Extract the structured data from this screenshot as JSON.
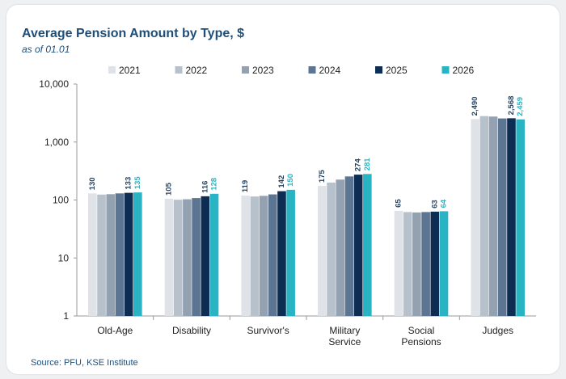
{
  "chart_data": {
    "type": "bar",
    "title": "Average Pension Amount by Type, $",
    "subtitle": "as of 01.01",
    "source": "Source: PFU,  KSE Institute",
    "yscale": "log",
    "ylim": [
      1,
      10000
    ],
    "yticks": [
      {
        "value": 1,
        "label": "1"
      },
      {
        "value": 10,
        "label": "10"
      },
      {
        "value": 100,
        "label": "100"
      },
      {
        "value": 1000,
        "label": "1,000"
      },
      {
        "value": 10000,
        "label": "10,000"
      }
    ],
    "legend_position": "top",
    "categories": [
      {
        "lines": [
          "Old-Age"
        ]
      },
      {
        "lines": [
          "Disability"
        ]
      },
      {
        "lines": [
          "Survivor's"
        ]
      },
      {
        "lines": [
          "Military",
          "Service"
        ]
      },
      {
        "lines": [
          "Social",
          "Pensions"
        ]
      },
      {
        "lines": [
          "Judges"
        ]
      }
    ],
    "series": [
      {
        "name": "2021",
        "color": "#dfe3e8",
        "labelColor": "#1f3f5f",
        "values": [
          130,
          105,
          119,
          175,
          65,
          2490
        ],
        "labels": [
          "130",
          "105",
          "119",
          "175",
          "65",
          "2,490"
        ]
      },
      {
        "name": "2022",
        "color": "#b7c1cb",
        "values": [
          124,
          101,
          115,
          200,
          62,
          2800
        ],
        "labels": [
          null,
          null,
          null,
          null,
          null,
          null
        ]
      },
      {
        "name": "2023",
        "color": "#93a1b1",
        "values": [
          126,
          103,
          118,
          225,
          61,
          2750
        ],
        "labels": [
          null,
          null,
          null,
          null,
          null,
          null
        ]
      },
      {
        "name": "2024",
        "color": "#5b7592",
        "values": [
          130,
          108,
          125,
          255,
          62,
          2550
        ],
        "labels": [
          null,
          null,
          null,
          null,
          null,
          null
        ]
      },
      {
        "name": "2025",
        "color": "#0d2d52",
        "labelColor": "#1f3f5f",
        "values": [
          133,
          116,
          142,
          274,
          63,
          2568
        ],
        "labels": [
          "133",
          "116",
          "142",
          "274",
          "63",
          "2,568"
        ]
      },
      {
        "name": "2026",
        "color": "#29b4c4",
        "labelColor": "#29b4c4",
        "values": [
          135,
          128,
          150,
          281,
          64,
          2459
        ],
        "labels": [
          "135",
          "128",
          "150",
          "281",
          "64",
          "2,459"
        ]
      }
    ]
  }
}
